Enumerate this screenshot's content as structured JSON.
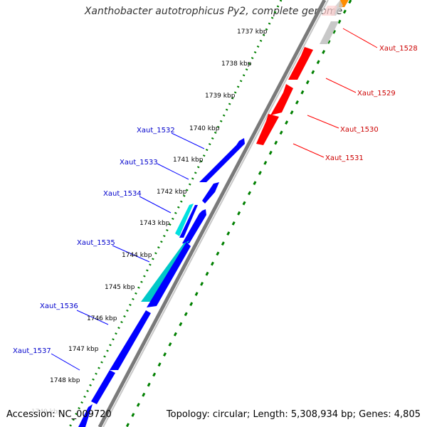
{
  "title": "Xanthobacter autotrophicus Py2, complete genome",
  "accession": "Accession: NC_009720",
  "summary": "Topology: circular; Length: 5,308,934 bp; Genes: 4,805",
  "faded_label": "1749 kbp",
  "ticks": [
    "1737 kbp",
    "1738 kbp",
    "1739 kbp",
    "1740 kbp",
    "1741 kbp",
    "1742 kbp",
    "1743 kbp",
    "1744 kbp",
    "1745 kbp",
    "1746 kbp",
    "1747 kbp",
    "1748 kbp"
  ],
  "genes_right": [
    "Xaut_1528",
    "Xaut_1529",
    "Xaut_1530",
    "Xaut_1531"
  ],
  "genes_left": [
    "Xaut_1532",
    "Xaut_1533",
    "Xaut_1534",
    "Xaut_1535",
    "Xaut_1536",
    "Xaut_1537"
  ],
  "colors": {
    "forward_gene": "#ff0000",
    "reverse_gene": "#0000ff",
    "highlight_gene": "#00c8c8",
    "backbone": "#808080",
    "tick_dots": "#008000",
    "label_right": "#cc0000",
    "label_left": "#0000cc",
    "gray_gene": "#c8c8c8",
    "orange_gene": "#ff8c00"
  }
}
